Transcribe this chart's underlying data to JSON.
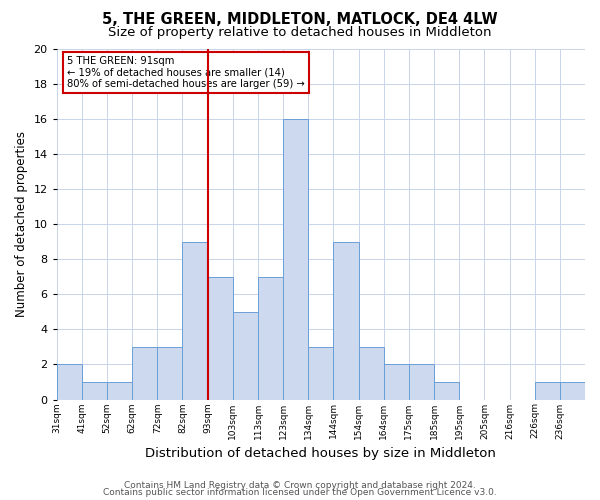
{
  "title": "5, THE GREEN, MIDDLETON, MATLOCK, DE4 4LW",
  "subtitle": "Size of property relative to detached houses in Middleton",
  "xlabel": "Distribution of detached houses by size in Middleton",
  "ylabel": "Number of detached properties",
  "bin_labels": [
    "31sqm",
    "41sqm",
    "52sqm",
    "62sqm",
    "72sqm",
    "82sqm",
    "93sqm",
    "103sqm",
    "113sqm",
    "123sqm",
    "134sqm",
    "144sqm",
    "154sqm",
    "164sqm",
    "175sqm",
    "185sqm",
    "195sqm",
    "205sqm",
    "216sqm",
    "226sqm",
    "236sqm"
  ],
  "bar_heights": [
    2,
    1,
    1,
    3,
    3,
    9,
    7,
    5,
    7,
    16,
    3,
    9,
    3,
    2,
    2,
    1,
    0,
    0,
    0,
    1,
    1
  ],
  "bar_color": "#ccd9ee",
  "bar_edge_color": "#6a9fd8",
  "red_line_bin": 6,
  "red_line_color": "#cc0000",
  "annotation_line1": "5 THE GREEN: 91sqm",
  "annotation_line2": "← 19% of detached houses are smaller (14)",
  "annotation_line3": "80% of semi-detached houses are larger (59) →",
  "ylim": [
    0,
    20
  ],
  "yticks": [
    0,
    2,
    4,
    6,
    8,
    10,
    12,
    14,
    16,
    18,
    20
  ],
  "footer1": "Contains HM Land Registry data © Crown copyright and database right 2024.",
  "footer2": "Contains public sector information licensed under the Open Government Licence v3.0.",
  "background_color": "#ffffff",
  "grid_color": "#c8d4e8",
  "title_fontsize": 10.5,
  "subtitle_fontsize": 9.5,
  "xlabel_fontsize": 9.5,
  "ylabel_fontsize": 8.5,
  "footer_fontsize": 6.5
}
